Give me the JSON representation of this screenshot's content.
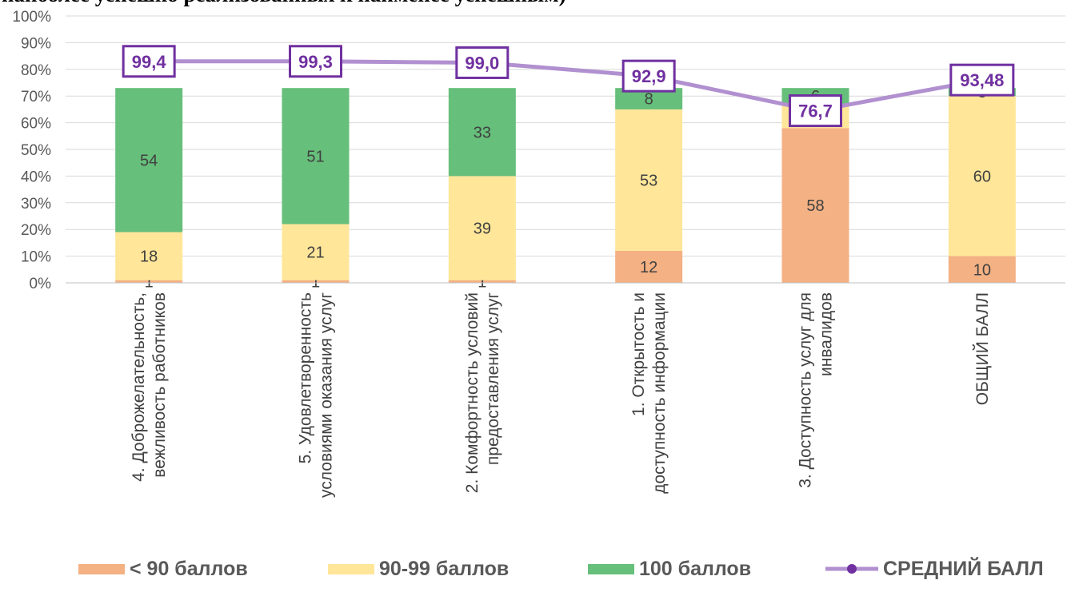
{
  "title": "наиболее успешно реализованных к наименее успешным)",
  "chart_data": {
    "type": "bar",
    "stacked": true,
    "categories": [
      [
        "4. Доброжелательность,",
        "вежливость работников"
      ],
      [
        "5. Удовлетворенность",
        "условиями оказания услуг"
      ],
      [
        "2. Комфортность условий",
        "предоставления услуг"
      ],
      [
        "1. Открытость и",
        "доступность информации"
      ],
      [
        "3. Доступность услуг для",
        "инвалидов"
      ],
      [
        "ОБЩИЙ БАЛЛ"
      ]
    ],
    "ylim": [
      0,
      100
    ],
    "yticks": [
      "0%",
      "10%",
      "20%",
      "30%",
      "40%",
      "50%",
      "60%",
      "70%",
      "80%",
      "90%",
      "100%"
    ],
    "series": [
      {
        "name": "< 90 баллов",
        "color": "#F4B183",
        "values": [
          1,
          1,
          1,
          12,
          58,
          10
        ]
      },
      {
        "name": "90-99 баллов",
        "color": "#FFE699",
        "values": [
          18,
          21,
          39,
          53,
          9,
          60
        ]
      },
      {
        "name": "100 баллов",
        "color": "#66BF7A",
        "values": [
          54,
          51,
          33,
          8,
          6,
          3
        ]
      }
    ],
    "line": {
      "name": "СРЕДНИЙ БАЛЛ",
      "color": "#B190D0",
      "label_color": "#7030A0",
      "values": [
        99.4,
        99.3,
        99.0,
        92.9,
        76.7,
        93.48
      ],
      "labels": [
        "99,4",
        "99,3",
        "99,0",
        "92,9",
        "76,7",
        "93,48"
      ],
      "plotted_percent": [
        83,
        83,
        82.5,
        77.5,
        64.5,
        76
      ]
    },
    "grid": true,
    "legend_position": "bottom"
  }
}
